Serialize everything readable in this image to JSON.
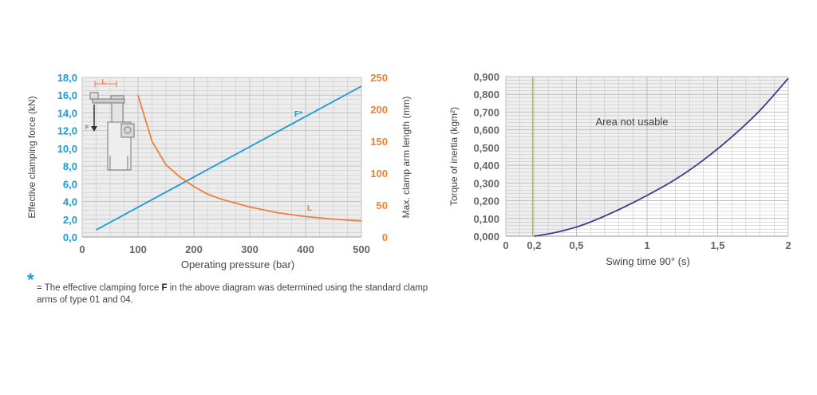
{
  "colors": {
    "blue": "#1a9ad7",
    "orange": "#ee7f3b",
    "purple": "#3c3a8c",
    "green": "#9bc73b",
    "grid": "#b9b9b9",
    "text": "#555555"
  },
  "chart_data": [
    {
      "type": "line",
      "title": "",
      "xlabel": "Operating pressure (bar)",
      "xlim": [
        0,
        500
      ],
      "x_ticks": [
        "0",
        "100",
        "200",
        "300",
        "400",
        "500"
      ],
      "x_tick_values": [
        0,
        100,
        200,
        300,
        400,
        500
      ],
      "ylabel_left": "Effective clamping force (kN)",
      "ylim_left": [
        0,
        18
      ],
      "y_left_ticks": [
        "0,0",
        "2,0",
        "4,0",
        "6,0",
        "8,0",
        "10,0",
        "12,0",
        "14,0",
        "16,0",
        "18,0"
      ],
      "y_left_tick_values": [
        0,
        2,
        4,
        6,
        8,
        10,
        12,
        14,
        16,
        18
      ],
      "ylabel_right": "Max. clamp arm length (mm)",
      "ylim_right": [
        0,
        250
      ],
      "y_right_ticks": [
        "0",
        "50",
        "100",
        "150",
        "200",
        "250"
      ],
      "y_right_tick_values": [
        0,
        50,
        100,
        150,
        200,
        250
      ],
      "series": [
        {
          "name": "F*",
          "axis": "left",
          "color": "#1a9ad7",
          "x": [
            25,
            500
          ],
          "y": [
            0.8,
            17.0
          ]
        },
        {
          "name": "L",
          "axis": "right",
          "color": "#ee7f3b",
          "x": [
            100,
            125,
            150,
            175,
            200,
            225,
            250,
            300,
            350,
            400,
            450,
            500
          ],
          "y": [
            222,
            150,
            113,
            94,
            79,
            67,
            59,
            47,
            38,
            32,
            28,
            25
          ]
        }
      ],
      "annotations": [
        "L",
        "F"
      ],
      "footnote_marker": "*",
      "footnote": "= The effective clamping force F in the above diagram was determined using the standard clamp arms of type 01 and 04."
    },
    {
      "type": "line",
      "title": "",
      "xlabel": "Swing time 90° (s)",
      "xlim": [
        0,
        2
      ],
      "x_ticks": [
        "0",
        "0,2",
        "0,5",
        "1",
        "1,5",
        "2"
      ],
      "x_tick_values": [
        0,
        0.2,
        0.5,
        1,
        1.5,
        2
      ],
      "ylabel": "Torque of inertia (kgm²)",
      "ylim": [
        0,
        0.9
      ],
      "y_ticks": [
        "0,000",
        "0,100",
        "0,200",
        "0,300",
        "0,400",
        "0,500",
        "0,600",
        "0,700",
        "0,800",
        "0,900"
      ],
      "y_tick_values": [
        0,
        0.1,
        0.2,
        0.3,
        0.4,
        0.5,
        0.6,
        0.7,
        0.8,
        0.9
      ],
      "shaded_region_label": "Area not usable",
      "boundary_x": 0.19,
      "series": [
        {
          "name": "torque",
          "color": "#3c3a8c",
          "x": [
            0.2,
            0.3,
            0.4,
            0.5,
            0.6,
            0.8,
            1.0,
            1.2,
            1.4,
            1.6,
            1.8,
            2.0
          ],
          "y": [
            0.0,
            0.013,
            0.03,
            0.052,
            0.08,
            0.15,
            0.23,
            0.32,
            0.43,
            0.56,
            0.71,
            0.89
          ]
        }
      ]
    }
  ]
}
